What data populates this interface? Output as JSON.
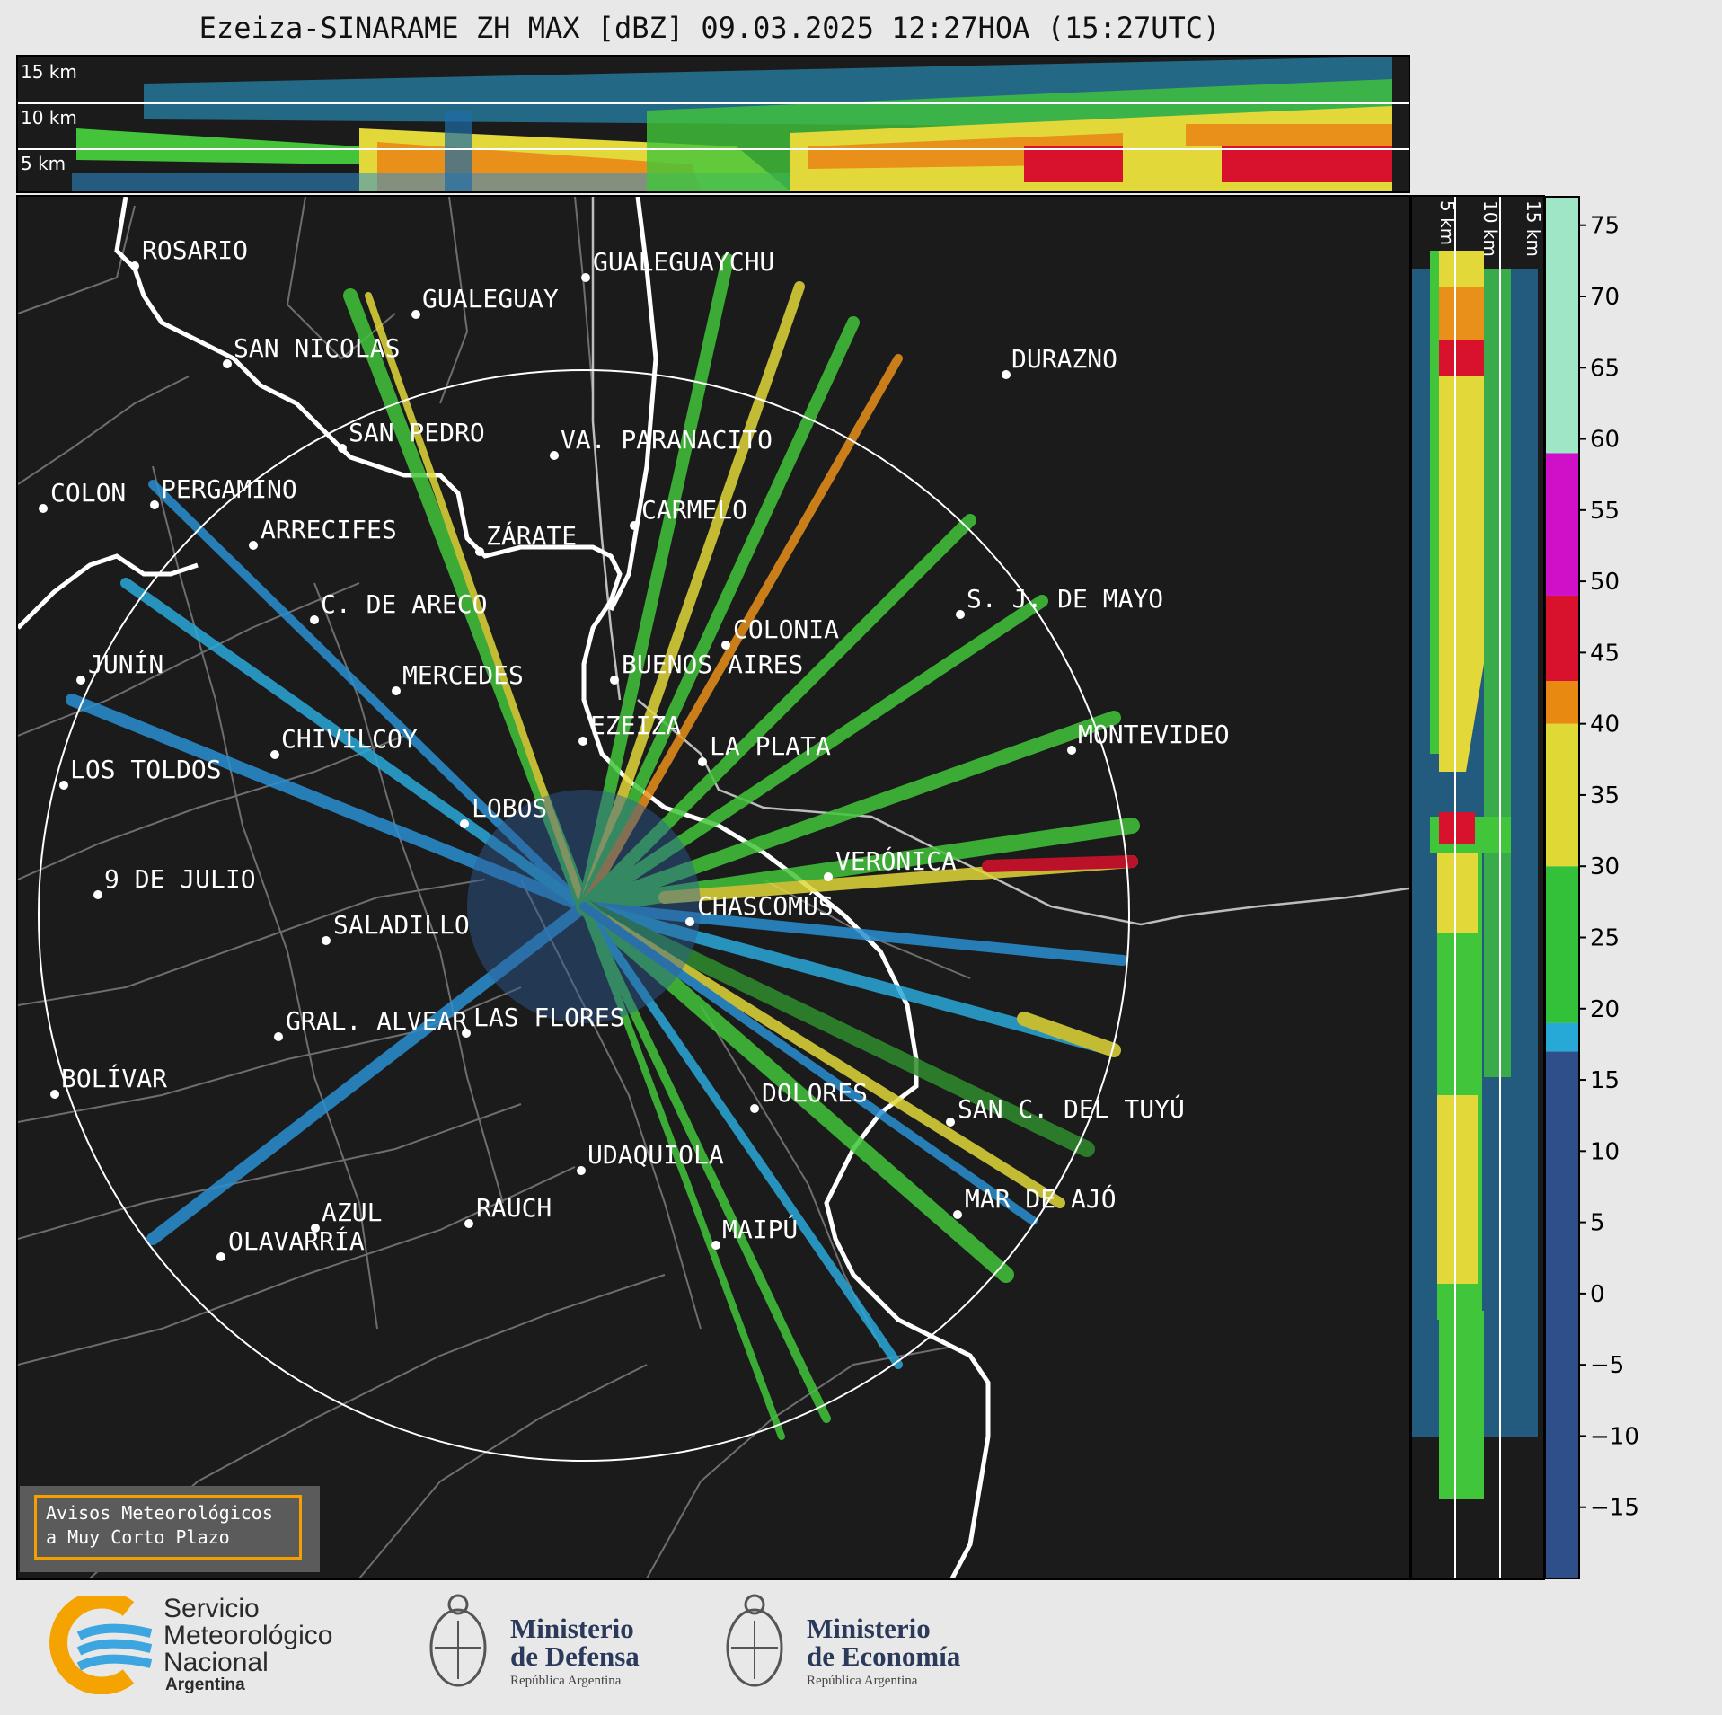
{
  "title": "Ezeiza-SINARAME ZH MAX [dBZ] 09.03.2025 12:27HOA (15:27UTC)",
  "top_panel": {
    "height_labels": [
      "15 km",
      "10 km",
      "5 km"
    ]
  },
  "side_panel": {
    "height_labels": [
      "5 km",
      "10 km",
      "15 km"
    ]
  },
  "colorbar": {
    "ticks": [
      "75",
      "70",
      "65",
      "60",
      "55",
      "50",
      "45",
      "40",
      "35",
      "30",
      "25",
      "20",
      "15",
      "10",
      "5",
      "0",
      "−5",
      "−10",
      "−15"
    ],
    "range": [
      -20,
      77
    ],
    "stops": [
      {
        "from": -20,
        "to": 17,
        "color": "#2f4f8a"
      },
      {
        "from": 17,
        "to": 19,
        "color": "#27a9d8"
      },
      {
        "from": 19,
        "to": 30,
        "color": "#33c13a"
      },
      {
        "from": 30,
        "to": 40,
        "color": "#e0d834"
      },
      {
        "from": 40,
        "to": 43,
        "color": "#e88a12"
      },
      {
        "from": 43,
        "to": 49,
        "color": "#d8112c"
      },
      {
        "from": 49,
        "to": 59,
        "color": "#d010c8"
      },
      {
        "from": 59,
        "to": 77,
        "color": "#9ee6c6"
      }
    ]
  },
  "cities": [
    {
      "name": "ROSARIO"
    },
    {
      "name": "GUALEGUAYCHU"
    },
    {
      "name": "GUALEGUAY"
    },
    {
      "name": "SAN NICOLAS"
    },
    {
      "name": "DURAZNO"
    },
    {
      "name": "SAN PEDRO"
    },
    {
      "name": "VA. PARANACITO"
    },
    {
      "name": "COLON"
    },
    {
      "name": "PERGAMINO"
    },
    {
      "name": "CARMELO"
    },
    {
      "name": "ARRECIFES"
    },
    {
      "name": "ZÁRATE"
    },
    {
      "name": "S. J. DE MAYO"
    },
    {
      "name": "C. DE ARECO"
    },
    {
      "name": "COLONIA"
    },
    {
      "name": "JUNÍN"
    },
    {
      "name": "BUENOS AIRES"
    },
    {
      "name": "MERCEDES"
    },
    {
      "name": "EZEIZA"
    },
    {
      "name": "MONTEVIDEO"
    },
    {
      "name": "CHIVILCOY"
    },
    {
      "name": "LA PLATA"
    },
    {
      "name": "LOS TOLDOS"
    },
    {
      "name": "LOBOS"
    },
    {
      "name": "VERÓNICA"
    },
    {
      "name": "9 DE JULIO"
    },
    {
      "name": "CHASCOMÚS"
    },
    {
      "name": "SALADILLO"
    },
    {
      "name": "GRAL. ALVEAR"
    },
    {
      "name": "LAS FLORES"
    },
    {
      "name": "BOLÍVAR"
    },
    {
      "name": "DOLORES"
    },
    {
      "name": "SAN C. DEL TUYÚ"
    },
    {
      "name": "UDAQUIOLA"
    },
    {
      "name": "MAR DE AJÓ"
    },
    {
      "name": "RAUCH"
    },
    {
      "name": "AZUL"
    },
    {
      "name": "OLAVARRÍA"
    },
    {
      "name": "MAIPÚ"
    }
  ],
  "alert": {
    "line1": "Avisos Meteorológicos",
    "line2": "a Muy Corto Plazo"
  },
  "footer": {
    "smn": {
      "line1": "Servicio",
      "line2": "Meteorológico",
      "line3": "Nacional",
      "sub": "Argentina"
    },
    "defensa": {
      "line1": "Ministerio",
      "line2": "de Defensa",
      "sub": "República Argentina"
    },
    "economia": {
      "line1": "Ministerio",
      "line2": "de Economía",
      "sub": "República Argentina"
    }
  }
}
